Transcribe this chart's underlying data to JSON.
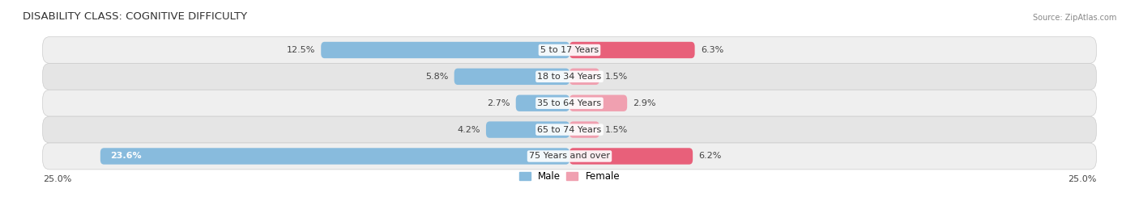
{
  "title": "DISABILITY CLASS: COGNITIVE DIFFICULTY",
  "source": "Source: ZipAtlas.com",
  "categories": [
    "5 to 17 Years",
    "18 to 34 Years",
    "35 to 64 Years",
    "65 to 74 Years",
    "75 Years and over"
  ],
  "male_values": [
    12.5,
    5.8,
    2.7,
    4.2,
    23.6
  ],
  "female_values": [
    6.3,
    1.5,
    2.9,
    1.5,
    6.2
  ],
  "male_color": "#88BBDD",
  "female_colors": [
    "#E8607A",
    "#F0A0B0",
    "#F0A0B0",
    "#F0A0B0",
    "#E8607A"
  ],
  "max_val": 25.0,
  "row_bg_even": "#EFEFEF",
  "row_bg_odd": "#E5E5E5",
  "label_fontsize": 8.0,
  "title_fontsize": 9.5,
  "axis_label_fontsize": 8.0,
  "legend_fontsize": 8.5,
  "bottom_labels": [
    "25.0%",
    "25.0%"
  ]
}
